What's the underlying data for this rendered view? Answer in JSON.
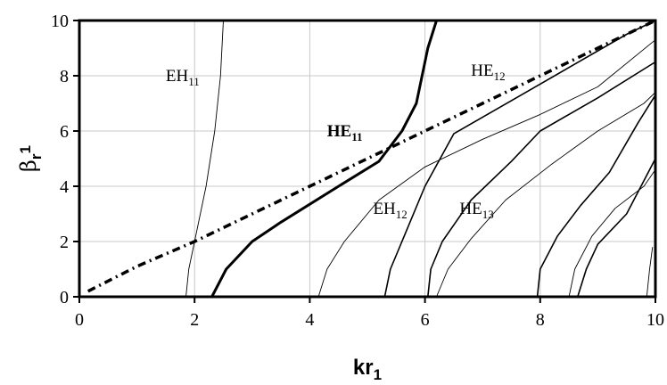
{
  "chart_data": {
    "type": "line",
    "xlabel": "kr",
    "xlabel_sub": "1",
    "ylabel": "β",
    "ylabel_sub": "r",
    "ylabel_sup": "1",
    "xlim": [
      0,
      10
    ],
    "ylim": [
      0,
      10
    ],
    "xticks": [
      "0",
      "2",
      "4",
      "6",
      "8",
      "10"
    ],
    "yticks": [
      "0",
      "2",
      "4",
      "6",
      "8",
      "10"
    ],
    "grid": true,
    "series": [
      {
        "style": "dashed-dotted",
        "points": [
          [
            0.15,
            0.2
          ],
          [
            1,
            1.1
          ],
          [
            2,
            2
          ],
          [
            3,
            3
          ],
          [
            4,
            4
          ],
          [
            5,
            5
          ],
          [
            6,
            6
          ],
          [
            7,
            7
          ],
          [
            8,
            8
          ],
          [
            9,
            9
          ],
          [
            10,
            10
          ]
        ]
      },
      {
        "label": "EH11",
        "style": "thin",
        "points": [
          [
            1.85,
            0
          ],
          [
            1.9,
            1
          ],
          [
            2.0,
            2.0
          ],
          [
            2.2,
            4.0
          ],
          [
            2.35,
            6.0
          ],
          [
            2.45,
            8.0
          ],
          [
            2.5,
            10
          ]
        ]
      },
      {
        "label": "HE11",
        "style": "thick",
        "points": [
          [
            2.3,
            0
          ],
          [
            2.55,
            1.0
          ],
          [
            3.0,
            2.0
          ],
          [
            3.5,
            2.7
          ],
          [
            4.5,
            4.0
          ],
          [
            5.2,
            4.9
          ],
          [
            5.6,
            6.0
          ],
          [
            5.85,
            7.0
          ],
          [
            6.05,
            9.0
          ],
          [
            6.2,
            10
          ]
        ]
      },
      {
        "label": "EH12",
        "style": "thin",
        "points": [
          [
            4.15,
            0
          ],
          [
            4.3,
            1.0
          ],
          [
            4.6,
            2.0
          ],
          [
            5.2,
            3.5
          ],
          [
            6.0,
            4.7
          ],
          [
            7.0,
            5.7
          ],
          [
            8.0,
            6.6
          ],
          [
            9.0,
            7.6
          ],
          [
            10,
            9.3
          ]
        ]
      },
      {
        "label": "HE12",
        "style": "medium",
        "points": [
          [
            5.3,
            0
          ],
          [
            5.4,
            1.0
          ],
          [
            5.5,
            1.5
          ],
          [
            6.0,
            4.0
          ],
          [
            6.5,
            5.9
          ],
          [
            7.5,
            7.1
          ],
          [
            8.5,
            8.3
          ],
          [
            9.5,
            9.5
          ],
          [
            10,
            10
          ]
        ]
      },
      {
        "style": "medium",
        "points": [
          [
            6.05,
            0
          ],
          [
            6.1,
            1.0
          ],
          [
            6.3,
            2.0
          ],
          [
            6.8,
            3.5
          ],
          [
            7.5,
            4.9
          ],
          [
            8.0,
            6.0
          ],
          [
            9.0,
            7.2
          ],
          [
            10,
            8.5
          ]
        ]
      },
      {
        "label": "HE13",
        "style": "thin",
        "points": [
          [
            6.2,
            0
          ],
          [
            6.4,
            1.0
          ],
          [
            6.8,
            2.1
          ],
          [
            7.4,
            3.5
          ],
          [
            8.2,
            4.8
          ],
          [
            9.0,
            6.0
          ],
          [
            9.8,
            7.0
          ],
          [
            10,
            7.4
          ]
        ]
      },
      {
        "style": "medium",
        "points": [
          [
            7.95,
            0
          ],
          [
            8.0,
            1.0
          ],
          [
            8.3,
            2.2
          ],
          [
            8.7,
            3.3
          ],
          [
            9.2,
            4.5
          ],
          [
            9.7,
            6.3
          ],
          [
            10,
            7.3
          ]
        ]
      },
      {
        "style": "thin",
        "points": [
          [
            8.5,
            0
          ],
          [
            8.6,
            1.0
          ],
          [
            8.9,
            2.2
          ],
          [
            9.3,
            3.2
          ],
          [
            9.8,
            4.0
          ],
          [
            10,
            4.6
          ]
        ]
      },
      {
        "style": "medium",
        "points": [
          [
            8.65,
            0
          ],
          [
            8.8,
            1.0
          ],
          [
            9.0,
            1.9
          ],
          [
            9.5,
            3.0
          ],
          [
            10,
            5.0
          ]
        ]
      },
      {
        "style": "thin",
        "points": [
          [
            9.85,
            0
          ],
          [
            9.9,
            1.0
          ],
          [
            9.95,
            1.8
          ]
        ]
      }
    ],
    "annotations": [
      {
        "text": "EH",
        "sub": "11",
        "x": 1.5,
        "y": 7.8,
        "bold": false
      },
      {
        "text": "HE",
        "sub": "11",
        "x": 4.3,
        "y": 5.8,
        "bold": true
      },
      {
        "text": "HE",
        "sub": "12",
        "x": 6.8,
        "y": 8.0,
        "bold": false
      },
      {
        "text": "EH",
        "sub": "12",
        "x": 5.1,
        "y": 3.0,
        "bold": false
      },
      {
        "text": "HE",
        "sub": "13",
        "x": 6.6,
        "y": 3.0,
        "bold": false
      }
    ]
  }
}
